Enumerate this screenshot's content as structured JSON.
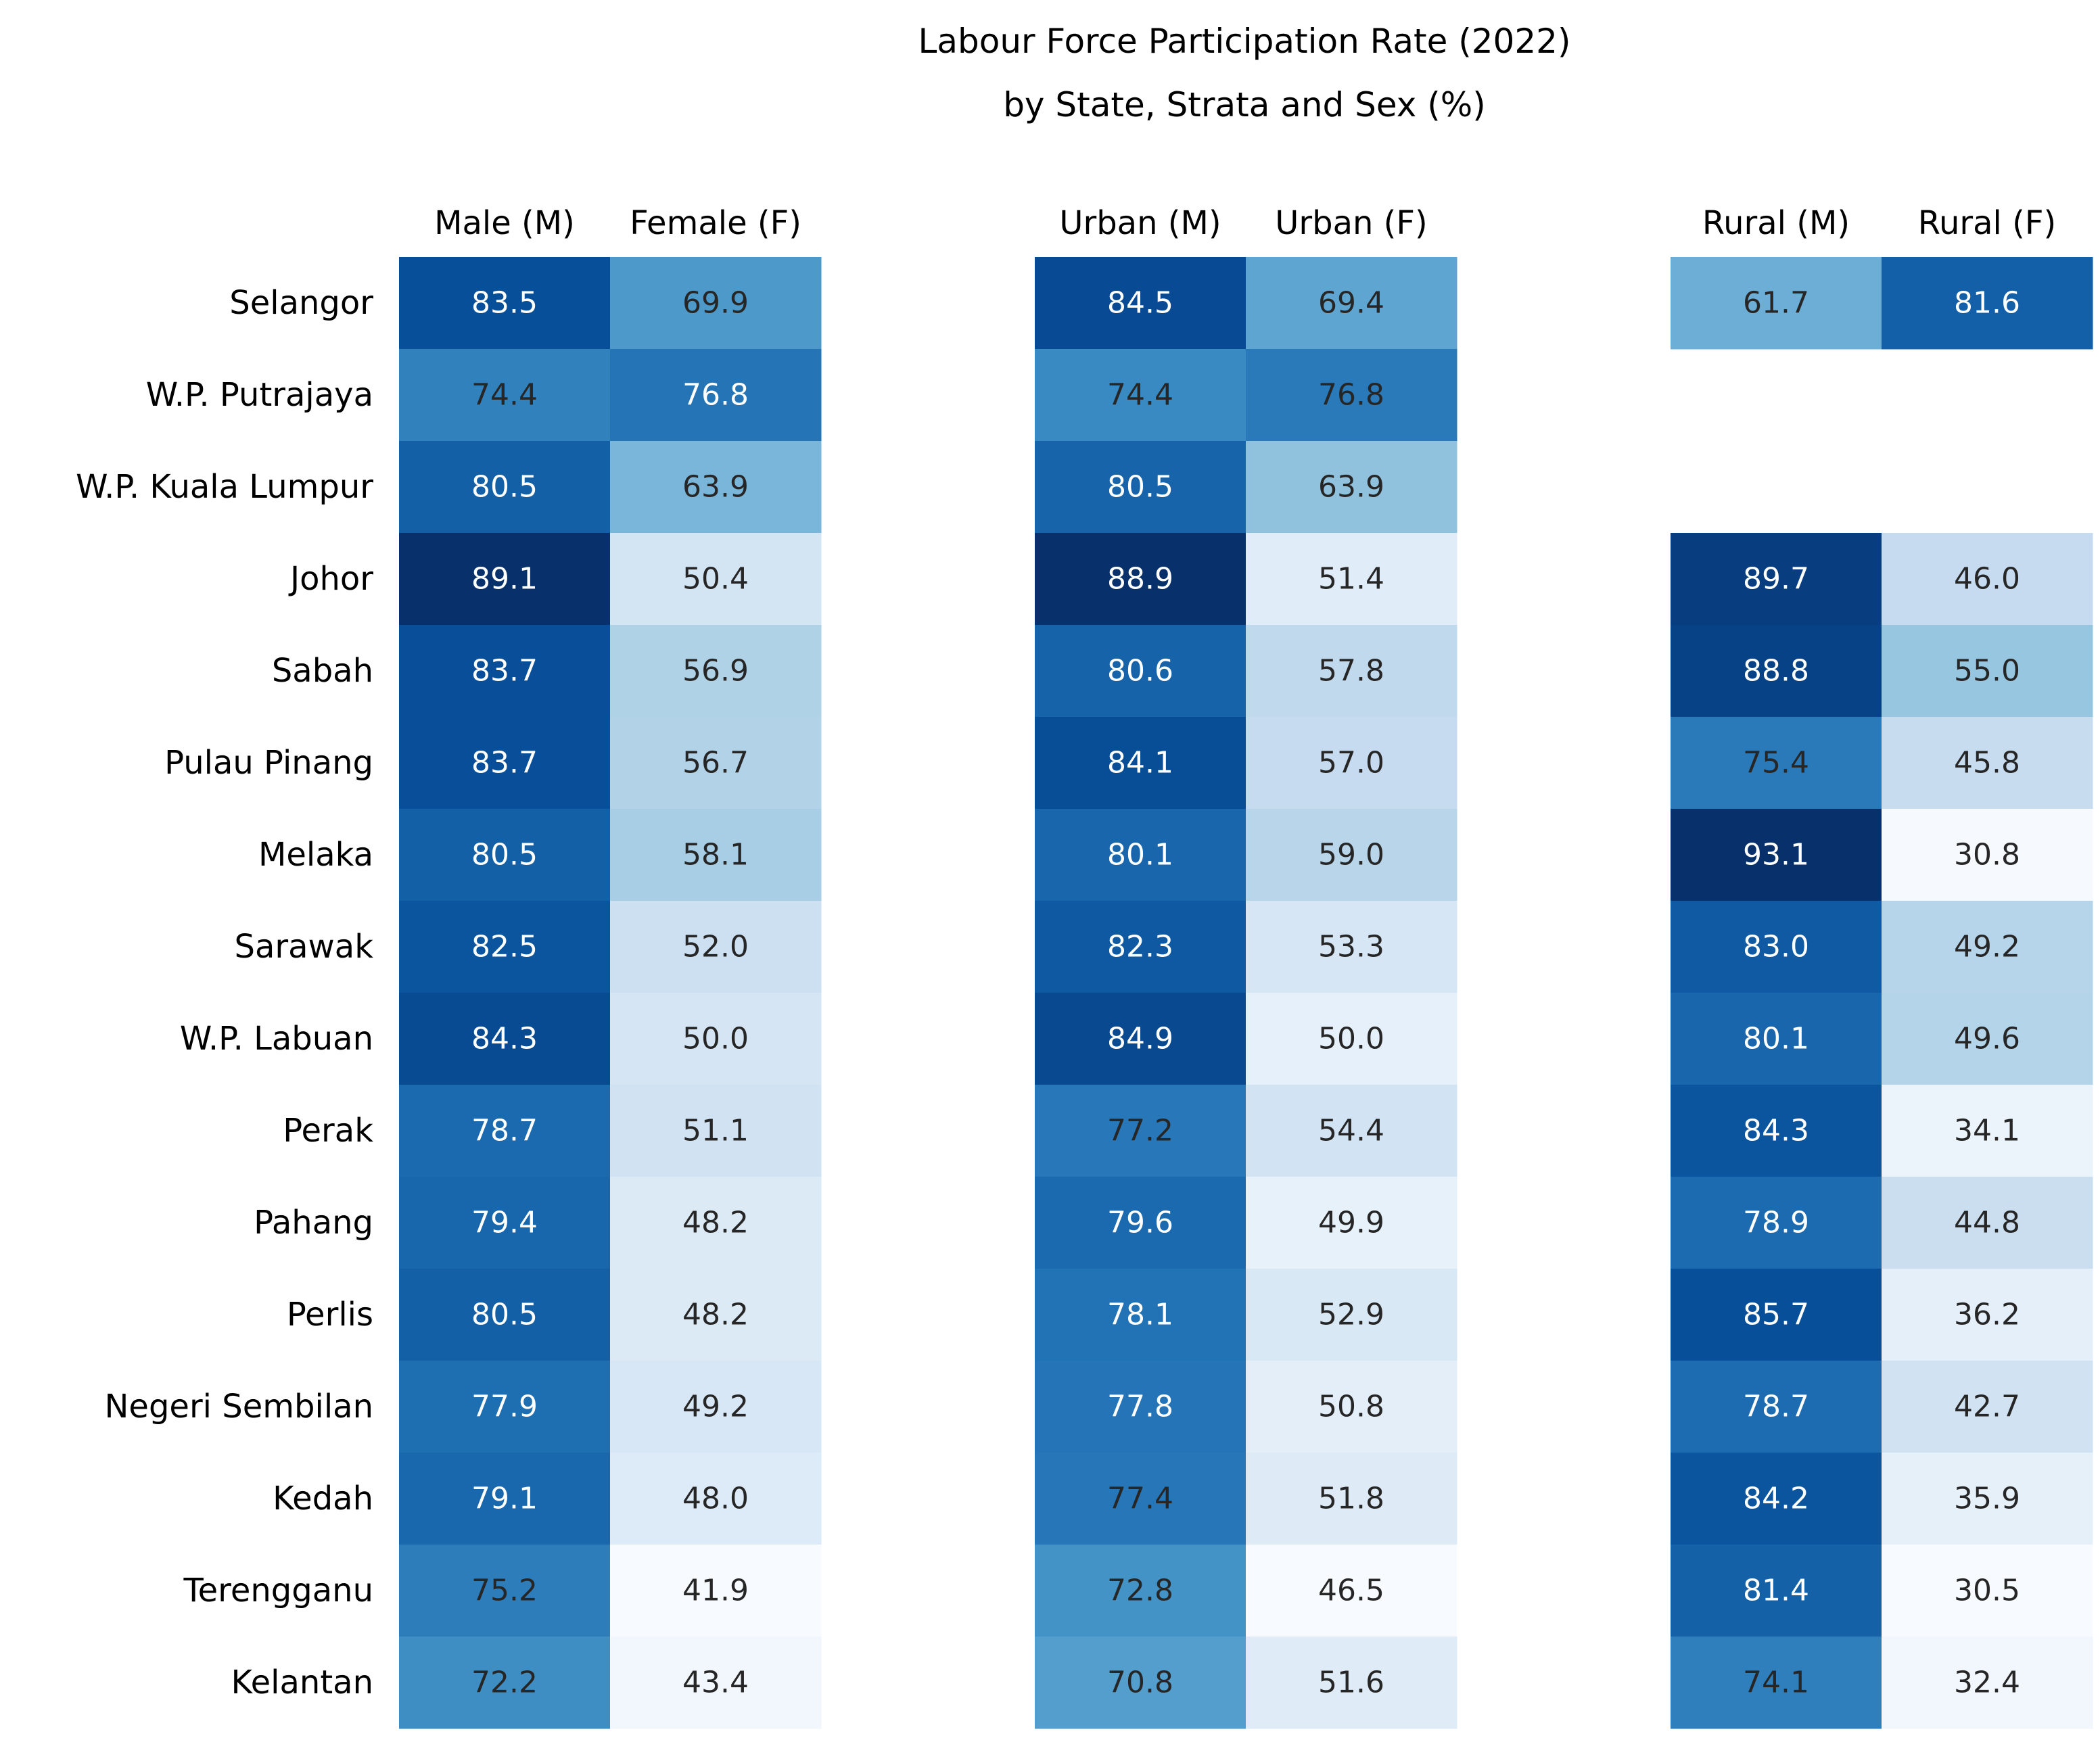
{
  "chart_data": {
    "type": "heatmap",
    "title_lines": [
      "Labour Force Participation Rate (2022)",
      "by State, Strata and Sex (%)"
    ],
    "colormap": "Blues",
    "rows": [
      "Selangor",
      "W.P. Putrajaya",
      "W.P. Kuala Lumpur",
      "Johor",
      "Sabah",
      "Pulau Pinang",
      "Melaka",
      "Sarawak",
      "W.P. Labuan",
      "Perak",
      "Pahang ",
      "Perlis",
      "Negeri Sembilan",
      "Kedah",
      "Terengganu",
      "Kelantan"
    ],
    "groups": [
      {
        "columns": [
          "Male (M)",
          "Female (F)"
        ],
        "values": [
          [
            83.5,
            69.9
          ],
          [
            74.4,
            76.8
          ],
          [
            80.5,
            63.9
          ],
          [
            89.1,
            50.4
          ],
          [
            83.7,
            56.9
          ],
          [
            83.7,
            56.7
          ],
          [
            80.5,
            58.1
          ],
          [
            82.5,
            52.0
          ],
          [
            84.3,
            50.0
          ],
          [
            78.7,
            51.1
          ],
          [
            79.4,
            48.2
          ],
          [
            80.5,
            48.2
          ],
          [
            77.9,
            49.2
          ],
          [
            79.1,
            48.0
          ],
          [
            75.2,
            41.9
          ],
          [
            72.2,
            43.4
          ]
        ]
      },
      {
        "columns": [
          "Urban (M)",
          "Urban (F)"
        ],
        "values": [
          [
            84.5,
            69.4
          ],
          [
            74.4,
            76.8
          ],
          [
            80.5,
            63.9
          ],
          [
            88.9,
            51.4
          ],
          [
            80.6,
            57.8
          ],
          [
            84.1,
            57.0
          ],
          [
            80.1,
            59.0
          ],
          [
            82.3,
            53.3
          ],
          [
            84.9,
            50.0
          ],
          [
            77.2,
            54.4
          ],
          [
            79.6,
            49.9
          ],
          [
            78.1,
            52.9
          ],
          [
            77.8,
            50.8
          ],
          [
            77.4,
            51.8
          ],
          [
            72.8,
            46.5
          ],
          [
            70.8,
            51.6
          ]
        ]
      },
      {
        "columns": [
          "Rural (M)",
          "Rural (F)"
        ],
        "values": [
          [
            61.7,
            81.6
          ],
          [
            null,
            null
          ],
          [
            null,
            null
          ],
          [
            89.7,
            46.0
          ],
          [
            88.8,
            55.0
          ],
          [
            75.4,
            45.8
          ],
          [
            93.1,
            30.8
          ],
          [
            83.0,
            49.2
          ],
          [
            80.1,
            49.6
          ],
          [
            84.3,
            34.1
          ],
          [
            78.9,
            44.8
          ],
          [
            85.7,
            36.2
          ],
          [
            78.7,
            42.7
          ],
          [
            84.2,
            35.9
          ],
          [
            81.4,
            30.5
          ],
          [
            74.1,
            32.4
          ]
        ]
      }
    ]
  }
}
